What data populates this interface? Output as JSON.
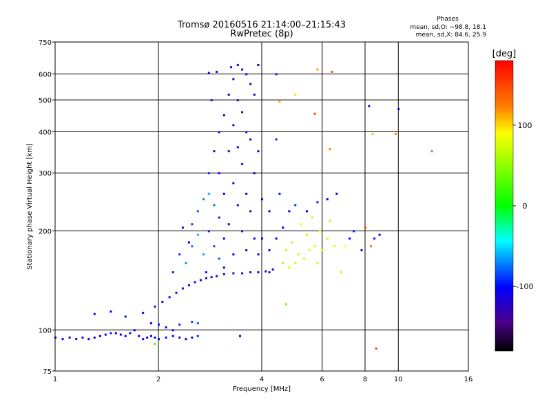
{
  "chart_data": {
    "type": "scatter",
    "title": "Tromsø 20160516 21:14:00–21:15:43",
    "subtitle": "RwPretec (8p)",
    "xlabel": "Frequency [MHz]",
    "ylabel": "Stationary phase Virtual Height [km]",
    "xscale": "log",
    "yscale": "log",
    "xlim": [
      1,
      16
    ],
    "ylim": [
      75,
      750
    ],
    "x_ticks": [
      1,
      2,
      4,
      6,
      8,
      10,
      16
    ],
    "y_ticks": [
      75,
      100,
      200,
      300,
      400,
      500,
      600,
      750
    ],
    "grid": true,
    "stats": {
      "heading": "Phases",
      "line_o": "mean, sd,O: −98.8, 18.1",
      "line_x": "mean, sd,X:  84.6, 25.9"
    },
    "colorbar": {
      "unit": "[deg]",
      "min": -180,
      "max": 180,
      "ticks": [
        100,
        0,
        -100
      ]
    },
    "series": [
      {
        "points": [
          {
            "f": 1.0,
            "h": 95,
            "p": -105
          },
          {
            "f": 1.05,
            "h": 94,
            "p": -108
          },
          {
            "f": 1.1,
            "h": 95,
            "p": -104
          },
          {
            "f": 1.15,
            "h": 94,
            "p": -110
          },
          {
            "f": 1.2,
            "h": 95,
            "p": -102
          },
          {
            "f": 1.25,
            "h": 94,
            "p": -100
          },
          {
            "f": 1.3,
            "h": 95,
            "p": -98
          },
          {
            "f": 1.35,
            "h": 96,
            "p": -104
          },
          {
            "f": 1.4,
            "h": 97,
            "p": -100
          },
          {
            "f": 1.45,
            "h": 98,
            "p": -95
          },
          {
            "f": 1.5,
            "h": 98,
            "p": -102
          },
          {
            "f": 1.55,
            "h": 97,
            "p": -108
          },
          {
            "f": 1.6,
            "h": 96,
            "p": -100
          },
          {
            "f": 1.65,
            "h": 98,
            "p": -96
          },
          {
            "f": 1.7,
            "h": 100,
            "p": -100
          },
          {
            "f": 1.75,
            "h": 96,
            "p": -104
          },
          {
            "f": 1.8,
            "h": 94,
            "p": -110
          },
          {
            "f": 1.85,
            "h": 95,
            "p": -100
          },
          {
            "f": 1.9,
            "h": 96,
            "p": -98
          },
          {
            "f": 1.95,
            "h": 95,
            "p": -104
          },
          {
            "f": 2.0,
            "h": 94,
            "p": -108
          },
          {
            "f": 2.1,
            "h": 95,
            "p": -96
          },
          {
            "f": 2.2,
            "h": 96,
            "p": -100
          },
          {
            "f": 2.3,
            "h": 95,
            "p": -104
          },
          {
            "f": 2.4,
            "h": 94,
            "p": -102
          },
          {
            "f": 2.5,
            "h": 95,
            "p": -98
          },
          {
            "f": 2.6,
            "h": 96,
            "p": -90
          },
          {
            "f": 1.3,
            "h": 112,
            "p": -105
          },
          {
            "f": 1.45,
            "h": 114,
            "p": -102
          },
          {
            "f": 1.6,
            "h": 110,
            "p": -98
          },
          {
            "f": 1.8,
            "h": 113,
            "p": -100
          },
          {
            "f": 1.95,
            "h": 118,
            "p": -95
          },
          {
            "f": 2.05,
            "h": 122,
            "p": -98
          },
          {
            "f": 2.15,
            "h": 126,
            "p": -100
          },
          {
            "f": 2.25,
            "h": 130,
            "p": -96
          },
          {
            "f": 2.35,
            "h": 134,
            "p": -102
          },
          {
            "f": 2.45,
            "h": 137,
            "p": -105
          },
          {
            "f": 2.55,
            "h": 140,
            "p": -100
          },
          {
            "f": 2.65,
            "h": 142,
            "p": -108
          },
          {
            "f": 2.75,
            "h": 144,
            "p": -110
          },
          {
            "f": 2.85,
            "h": 145,
            "p": -112
          },
          {
            "f": 2.95,
            "h": 146,
            "p": -115
          },
          {
            "f": 3.1,
            "h": 148,
            "p": -118
          },
          {
            "f": 3.3,
            "h": 149,
            "p": -120
          },
          {
            "f": 3.5,
            "h": 149,
            "p": -118
          },
          {
            "f": 3.7,
            "h": 150,
            "p": -115
          },
          {
            "f": 3.9,
            "h": 150,
            "p": -112
          },
          {
            "f": 4.1,
            "h": 151,
            "p": -110
          },
          {
            "f": 4.3,
            "h": 153,
            "p": -108
          },
          {
            "f": 1.9,
            "h": 105,
            "p": -100
          },
          {
            "f": 2.0,
            "h": 104,
            "p": -96
          },
          {
            "f": 2.1,
            "h": 102,
            "p": -100
          },
          {
            "f": 2.3,
            "h": 104,
            "p": -92
          },
          {
            "f": 2.5,
            "h": 106,
            "p": -85
          },
          {
            "f": 2.6,
            "h": 105,
            "p": -80
          },
          {
            "f": 2.2,
            "h": 100,
            "p": -102
          },
          {
            "f": 2.2,
            "h": 150,
            "p": -95
          },
          {
            "f": 2.3,
            "h": 170,
            "p": -90
          },
          {
            "f": 2.4,
            "h": 160,
            "p": -70
          },
          {
            "f": 2.5,
            "h": 180,
            "p": -75
          },
          {
            "f": 2.5,
            "h": 210,
            "p": -85
          },
          {
            "f": 2.6,
            "h": 195,
            "p": -60
          },
          {
            "f": 2.6,
            "h": 230,
            "p": -80
          },
          {
            "f": 2.7,
            "h": 250,
            "p": -70
          },
          {
            "f": 2.7,
            "h": 170,
            "p": -65
          },
          {
            "f": 2.8,
            "h": 260,
            "p": -60
          },
          {
            "f": 2.8,
            "h": 300,
            "p": -90
          },
          {
            "f": 2.8,
            "h": 200,
            "p": -95
          },
          {
            "f": 2.9,
            "h": 350,
            "p": -105
          },
          {
            "f": 2.9,
            "h": 240,
            "p": -75
          },
          {
            "f": 2.9,
            "h": 180,
            "p": -85
          },
          {
            "f": 3.0,
            "h": 400,
            "p": -110
          },
          {
            "f": 3.0,
            "h": 300,
            "p": -100
          },
          {
            "f": 3.0,
            "h": 220,
            "p": -95
          },
          {
            "f": 3.0,
            "h": 165,
            "p": -80
          },
          {
            "f": 2.85,
            "h": 500,
            "p": -125
          },
          {
            "f": 2.95,
            "h": 610,
            "p": -120
          },
          {
            "f": 3.1,
            "h": 450,
            "p": -115
          },
          {
            "f": 3.1,
            "h": 260,
            "p": -105
          },
          {
            "f": 3.1,
            "h": 190,
            "p": -100
          },
          {
            "f": 3.2,
            "h": 520,
            "p": -120
          },
          {
            "f": 3.2,
            "h": 350,
            "p": -112
          },
          {
            "f": 3.2,
            "h": 210,
            "p": -108
          },
          {
            "f": 3.25,
            "h": 630,
            "p": -118
          },
          {
            "f": 3.3,
            "h": 580,
            "p": -125
          },
          {
            "f": 3.3,
            "h": 420,
            "p": -120
          },
          {
            "f": 3.3,
            "h": 280,
            "p": -115
          },
          {
            "f": 3.3,
            "h": 170,
            "p": -110
          },
          {
            "f": 3.4,
            "h": 640,
            "p": -120
          },
          {
            "f": 3.4,
            "h": 500,
            "p": -128
          },
          {
            "f": 3.4,
            "h": 360,
            "p": -122
          },
          {
            "f": 3.4,
            "h": 240,
            "p": -118
          },
          {
            "f": 3.5,
            "h": 620,
            "p": -115
          },
          {
            "f": 3.5,
            "h": 460,
            "p": -125
          },
          {
            "f": 3.5,
            "h": 320,
            "p": -120
          },
          {
            "f": 3.5,
            "h": 200,
            "p": -112
          },
          {
            "f": 3.6,
            "h": 600,
            "p": -118
          },
          {
            "f": 3.6,
            "h": 400,
            "p": -122
          },
          {
            "f": 3.6,
            "h": 260,
            "p": -115
          },
          {
            "f": 3.6,
            "h": 175,
            "p": -110
          },
          {
            "f": 3.7,
            "h": 560,
            "p": -112
          },
          {
            "f": 3.7,
            "h": 380,
            "p": -118
          },
          {
            "f": 3.7,
            "h": 230,
            "p": -110
          },
          {
            "f": 3.8,
            "h": 520,
            "p": -110
          },
          {
            "f": 3.8,
            "h": 300,
            "p": -115
          },
          {
            "f": 3.8,
            "h": 190,
            "p": -108
          },
          {
            "f": 3.9,
            "h": 640,
            "p": -105
          },
          {
            "f": 3.9,
            "h": 350,
            "p": -110
          },
          {
            "f": 3.9,
            "h": 170,
            "p": -102
          },
          {
            "f": 4.0,
            "h": 250,
            "p": -100
          },
          {
            "f": 4.0,
            "h": 190,
            "p": -105
          },
          {
            "f": 4.2,
            "h": 230,
            "p": -105
          },
          {
            "f": 4.2,
            "h": 175,
            "p": -100
          },
          {
            "f": 4.4,
            "h": 190,
            "p": -100
          },
          {
            "f": 4.4,
            "h": 380,
            "p": -90
          },
          {
            "f": 4.5,
            "h": 260,
            "p": -95
          },
          {
            "f": 4.6,
            "h": 160,
            "p": 60
          },
          {
            "f": 4.7,
            "h": 175,
            "p": 70
          },
          {
            "f": 4.8,
            "h": 155,
            "p": 75
          },
          {
            "f": 4.9,
            "h": 185,
            "p": 65
          },
          {
            "f": 5.0,
            "h": 160,
            "p": 72
          },
          {
            "f": 5.1,
            "h": 170,
            "p": 68
          },
          {
            "f": 5.2,
            "h": 210,
            "p": 80
          },
          {
            "f": 5.3,
            "h": 165,
            "p": 75
          },
          {
            "f": 5.4,
            "h": 195,
            "p": 70
          },
          {
            "f": 5.5,
            "h": 175,
            "p": 82
          },
          {
            "f": 5.6,
            "h": 220,
            "p": 65
          },
          {
            "f": 5.7,
            "h": 180,
            "p": 78
          },
          {
            "f": 5.8,
            "h": 160,
            "p": 72
          },
          {
            "f": 5.9,
            "h": 200,
            "p": 85
          },
          {
            "f": 6.0,
            "h": 175,
            "p": 70
          },
          {
            "f": 6.2,
            "h": 190,
            "p": 75
          },
          {
            "f": 6.3,
            "h": 215,
            "p": 68
          },
          {
            "f": 6.5,
            "h": 180,
            "p": 80
          },
          {
            "f": 4.6,
            "h": 205,
            "p": -100
          },
          {
            "f": 4.8,
            "h": 230,
            "p": -105
          },
          {
            "f": 5.0,
            "h": 240,
            "p": -90
          },
          {
            "f": 5.4,
            "h": 230,
            "p": -100
          },
          {
            "f": 5.8,
            "h": 245,
            "p": -95
          },
          {
            "f": 6.2,
            "h": 250,
            "p": -100
          },
          {
            "f": 6.6,
            "h": 260,
            "p": -110
          },
          {
            "f": 7.2,
            "h": 190,
            "p": -100
          },
          {
            "f": 7.8,
            "h": 175,
            "p": -105
          },
          {
            "f": 8.5,
            "h": 190,
            "p": -95
          },
          {
            "f": 8.8,
            "h": 195,
            "p": -100
          },
          {
            "f": 8.0,
            "h": 205,
            "p": 150
          },
          {
            "f": 8.3,
            "h": 180,
            "p": 130
          },
          {
            "f": 4.5,
            "h": 495,
            "p": 110
          },
          {
            "f": 5.0,
            "h": 520,
            "p": 95
          },
          {
            "f": 5.7,
            "h": 455,
            "p": 150
          },
          {
            "f": 5.8,
            "h": 620,
            "p": 115
          },
          {
            "f": 6.4,
            "h": 610,
            "p": 140
          },
          {
            "f": 6.3,
            "h": 355,
            "p": 120
          },
          {
            "f": 8.4,
            "h": 395,
            "p": 105
          },
          {
            "f": 8.2,
            "h": 480,
            "p": -110
          },
          {
            "f": 9.8,
            "h": 395,
            "p": 120
          },
          {
            "f": 10.0,
            "h": 470,
            "p": -100
          },
          {
            "f": 12.5,
            "h": 350,
            "p": 130
          },
          {
            "f": 4.4,
            "h": 600,
            "p": -95
          },
          {
            "f": 2.8,
            "h": 605,
            "p": -100
          },
          {
            "f": 2.35,
            "h": 205,
            "p": -112
          },
          {
            "f": 2.45,
            "h": 185,
            "p": -104
          },
          {
            "f": 2.75,
            "h": 150,
            "p": -96
          },
          {
            "f": 3.1,
            "h": 155,
            "p": -102
          },
          {
            "f": 1.95,
            "h": 91,
            "p": 20
          },
          {
            "f": 3.45,
            "h": 96,
            "p": -106
          },
          {
            "f": 4.2,
            "h": 150,
            "p": -110
          },
          {
            "f": 6.8,
            "h": 150,
            "p": 100
          },
          {
            "f": 7.0,
            "h": 180,
            "p": 90
          },
          {
            "f": 8.6,
            "h": 88,
            "p": 150
          },
          {
            "f": 7.4,
            "h": 200,
            "p": -95
          },
          {
            "f": 4.7,
            "h": 120,
            "p": 40
          }
        ]
      }
    ]
  }
}
